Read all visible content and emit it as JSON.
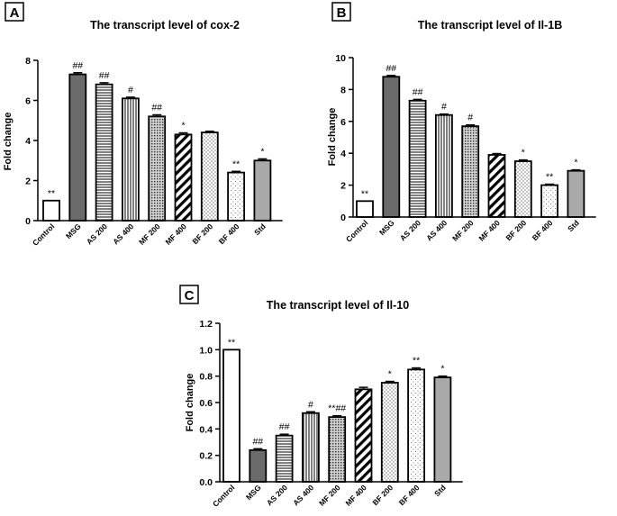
{
  "chart_data": [
    {
      "panel": "A",
      "type": "bar",
      "title": "The transcript level of cox-2",
      "ylabel": "Fold change",
      "xlabel": "",
      "ylim": [
        0,
        8
      ],
      "yticks": [
        "0",
        "2",
        "4",
        "6",
        "8"
      ],
      "categories": [
        "Control",
        "MSG",
        "AS 200",
        "AS 400",
        "MF 200",
        "MF 400",
        "BF 200",
        "BF 400",
        "Std"
      ],
      "values": [
        1.0,
        7.3,
        6.8,
        6.1,
        5.2,
        4.3,
        4.4,
        2.4,
        3.0
      ],
      "errors": [
        0.0,
        0.08,
        0.08,
        0.06,
        0.08,
        0.08,
        0.06,
        0.06,
        0.08
      ],
      "annotations": [
        "**",
        "##",
        "##",
        "#",
        "##",
        "*",
        "",
        "**",
        "*"
      ],
      "fills": [
        "white",
        "darkgray",
        "hlines",
        "vlines",
        "dots-dense",
        "diag",
        "dots",
        "dots-sparse",
        "lightgray"
      ]
    },
    {
      "panel": "B",
      "type": "bar",
      "title": "The transcript level of Il-1B",
      "ylabel": "Fold change",
      "xlabel": "",
      "ylim": [
        0,
        10
      ],
      "yticks": [
        "0",
        "2",
        "4",
        "6",
        "8",
        "10"
      ],
      "categories": [
        "Control",
        "MSG",
        "AS 200",
        "AS 400",
        "MF 200",
        "MF 400",
        "BF 200",
        "BF 400",
        "Std"
      ],
      "values": [
        1.0,
        8.8,
        7.3,
        6.4,
        5.7,
        3.9,
        3.5,
        2.0,
        2.9
      ],
      "errors": [
        0.0,
        0.08,
        0.08,
        0.06,
        0.08,
        0.08,
        0.08,
        0.06,
        0.06
      ],
      "annotations": [
        "**",
        "##",
        "##",
        "#",
        "#",
        "",
        "*",
        "**",
        "*"
      ],
      "fills": [
        "white",
        "darkgray",
        "hlines",
        "vlines",
        "dots-dense",
        "diag",
        "dots",
        "dots-sparse",
        "lightgray"
      ]
    },
    {
      "panel": "C",
      "type": "bar",
      "title": "The transcript level of Il-10",
      "ylabel": "Fold change",
      "xlabel": "",
      "ylim": [
        0,
        1.2
      ],
      "yticks": [
        "0.0",
        "0.2",
        "0.4",
        "0.6",
        "0.8",
        "1.0",
        "1.2"
      ],
      "categories": [
        "Control",
        "MSG",
        "AS 200",
        "AS 400",
        "MF 200",
        "MF 400",
        "BF 200",
        "BF 400",
        "Std"
      ],
      "values": [
        1.0,
        0.24,
        0.35,
        0.52,
        0.49,
        0.7,
        0.75,
        0.85,
        0.79
      ],
      "errors": [
        0.0,
        0.01,
        0.01,
        0.01,
        0.01,
        0.015,
        0.01,
        0.012,
        0.01
      ],
      "annotations": [
        "**",
        "##",
        "##",
        "#",
        "**##",
        "",
        "*",
        "**",
        "*"
      ],
      "fills": [
        "white",
        "darkgray",
        "hlines",
        "vlines",
        "dots-dense",
        "diag",
        "dots",
        "dots-sparse",
        "lightgray"
      ]
    }
  ],
  "colors": {
    "darkgray": "#6b6b6b",
    "lightgray": "#a9a9a9",
    "stroke": "#000000"
  }
}
